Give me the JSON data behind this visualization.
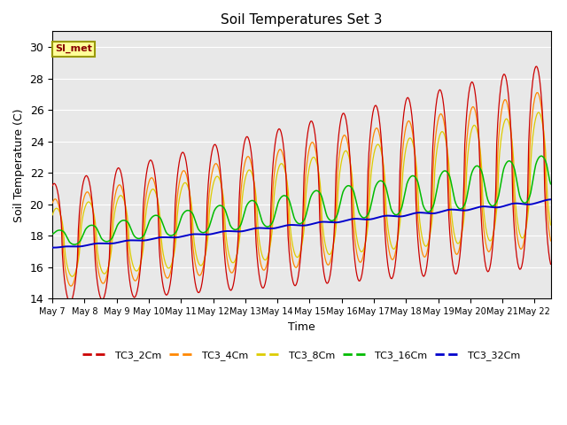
{
  "title": "Soil Temperatures Set 3",
  "xlabel": "Time",
  "ylabel": "Soil Temperature (C)",
  "ylim": [
    14,
    31
  ],
  "yticks": [
    14,
    16,
    18,
    20,
    22,
    24,
    26,
    28,
    30
  ],
  "bg_color": "#e8e8e8",
  "annotation_text": "SI_met",
  "annotation_bg": "#ffff99",
  "annotation_border": "#999900",
  "series_colors": {
    "TC3_2Cm": "#cc0000",
    "TC3_4Cm": "#ff8800",
    "TC3_8Cm": "#ddcc00",
    "TC3_16Cm": "#00bb00",
    "TC3_32Cm": "#0000cc"
  },
  "x_tick_labels": [
    "May 7",
    "May 8",
    "May 9",
    "May 10",
    "May 11",
    "May 12",
    "May 13",
    "May 14",
    "May 15",
    "May 16",
    "May 17",
    "May 18",
    "May 19",
    "May 20",
    "May 21",
    "May 22"
  ]
}
